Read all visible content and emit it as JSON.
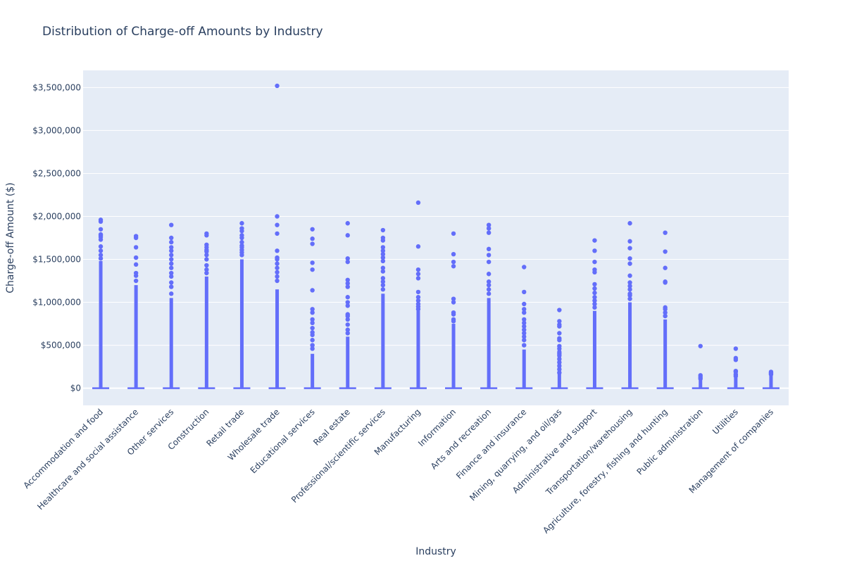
{
  "chart_data": {
    "type": "box",
    "title": "Distribution of Charge-off Amounts by Industry",
    "xlabel": "Industry",
    "ylabel": "Charge-off Amount ($)",
    "ylim": [
      -200000,
      3700000
    ],
    "y_ticks": [
      0,
      500000,
      1000000,
      1500000,
      2000000,
      2500000,
      3000000,
      3500000
    ],
    "y_tick_labels": [
      "$0",
      "$500,000",
      "$1,000,000",
      "$1,500,000",
      "$2,000,000",
      "$2,500,000",
      "$3,000,000",
      "$3,500,000"
    ],
    "grid": true,
    "legend": "none",
    "colors": {
      "marker": "#636efa",
      "plot_background": "#e5ecf6",
      "gridline": "#ffffff",
      "text": "#2a3f5f"
    },
    "categories": [
      "Accommodation and food",
      "Healthcare and social assistance",
      "Other services",
      "Construction",
      "Retail trade",
      "Wholesale trade",
      "Educational services",
      "Real estate",
      "Professional/scientific services",
      "Manufacturing",
      "Information",
      "Arts and recreation",
      "Finance and insurance",
      "Mining, quarrying, and oil/gas",
      "Administrative and support",
      "Transportation/warehousing",
      "Agriculture, forestry, fishing and hunting",
      "Public administration",
      "Utilities",
      "Management of companies"
    ],
    "dense_outlier_top": [
      1480000,
      1200000,
      1050000,
      1300000,
      1500000,
      1150000,
      400000,
      600000,
      1100000,
      900000,
      750000,
      1050000,
      450000,
      500000,
      900000,
      1000000,
      800000,
      120000,
      200000,
      150000
    ],
    "outliers": [
      [
        1960000,
        1940000,
        1850000,
        1790000,
        1780000,
        1760000,
        1730000,
        1650000,
        1600000,
        1550000,
        1510000
      ],
      [
        1770000,
        1750000,
        1640000,
        1520000,
        1440000,
        1340000,
        1310000,
        1250000
      ],
      [
        1900000,
        1750000,
        1700000,
        1640000,
        1600000,
        1550000,
        1500000,
        1450000,
        1400000,
        1340000,
        1300000,
        1230000,
        1180000,
        1100000
      ],
      [
        1800000,
        1780000,
        1670000,
        1640000,
        1610000,
        1590000,
        1550000,
        1500000,
        1430000,
        1380000,
        1340000
      ],
      [
        1920000,
        1860000,
        1830000,
        1780000,
        1750000,
        1700000,
        1660000,
        1640000,
        1610000,
        1580000,
        1550000
      ],
      [
        3520000,
        2000000,
        1900000,
        1800000,
        1600000,
        1520000,
        1500000,
        1450000,
        1400000,
        1350000,
        1300000,
        1250000
      ],
      [
        1850000,
        1740000,
        1680000,
        1460000,
        1380000,
        1140000,
        920000,
        880000,
        800000,
        760000,
        700000,
        650000,
        620000,
        560000,
        500000,
        460000
      ],
      [
        1920000,
        1780000,
        1510000,
        1470000,
        1260000,
        1220000,
        1180000,
        1060000,
        1000000,
        960000,
        860000,
        840000,
        800000,
        740000,
        680000,
        640000
      ],
      [
        1840000,
        1750000,
        1720000,
        1640000,
        1600000,
        1560000,
        1520000,
        1480000,
        1400000,
        1360000,
        1280000,
        1240000,
        1200000,
        1150000
      ],
      [
        2160000,
        1650000,
        1380000,
        1330000,
        1280000,
        1120000,
        1060000,
        1020000,
        980000,
        950000,
        920000
      ],
      [
        1800000,
        1560000,
        1470000,
        1420000,
        1040000,
        1000000,
        880000,
        860000,
        800000,
        780000
      ],
      [
        1900000,
        1860000,
        1810000,
        1620000,
        1550000,
        1470000,
        1330000,
        1240000,
        1200000,
        1150000,
        1100000
      ],
      [
        1410000,
        1120000,
        980000,
        920000,
        880000,
        800000,
        760000,
        720000,
        680000,
        640000,
        600000,
        560000,
        500000
      ],
      [
        910000,
        780000,
        740000,
        720000,
        640000,
        580000,
        560000,
        490000,
        460000,
        420000,
        400000,
        380000,
        340000,
        300000,
        260000,
        220000,
        180000
      ],
      [
        1720000,
        1600000,
        1470000,
        1380000,
        1350000,
        1210000,
        1160000,
        1110000,
        1060000,
        1020000,
        980000,
        940000
      ],
      [
        1920000,
        1710000,
        1630000,
        1510000,
        1450000,
        1310000,
        1230000,
        1190000,
        1150000,
        1100000,
        1080000,
        1040000
      ],
      [
        1810000,
        1590000,
        1400000,
        1240000,
        1230000,
        940000,
        920000,
        880000,
        840000
      ],
      [
        490000,
        150000,
        130000,
        110000
      ],
      [
        460000,
        350000,
        330000,
        200000,
        190000,
        160000,
        140000
      ],
      [
        190000,
        180000,
        160000,
        170000
      ]
    ]
  }
}
